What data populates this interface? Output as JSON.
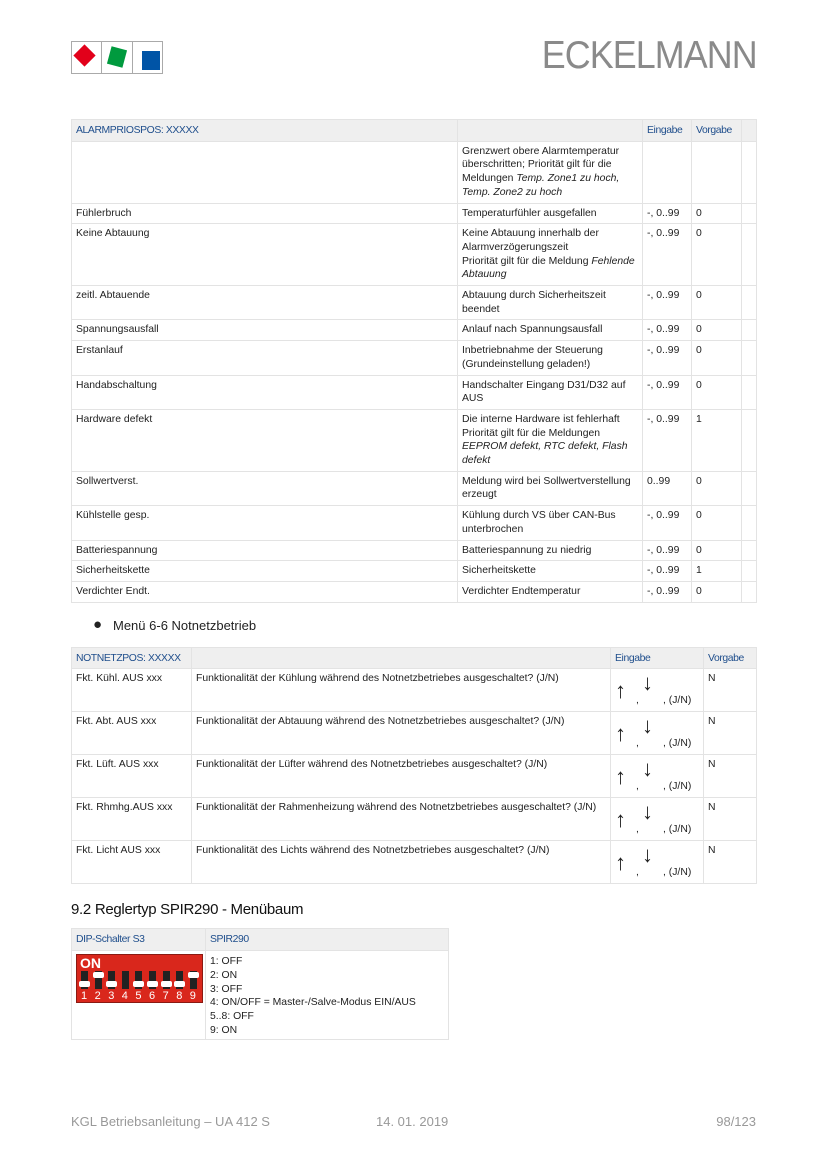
{
  "header": {
    "brand": "ECKELMANN",
    "logo_colors": [
      "#e2001a",
      "#009a3e",
      "#0054a6"
    ]
  },
  "table1": {
    "headers": [
      "ALARMPRIOSPOS: XXXXX",
      "",
      "Eingabe",
      "Vorgabe",
      ""
    ],
    "rows": [
      {
        "name": "",
        "desc": "Grenzwert obere Alarmtemperatur überschritten; Priorität gilt für die Meldungen ",
        "italic": "Temp. Zone1 zu hoch, Temp. Zone2 zu hoch",
        "input": "",
        "default": ""
      },
      {
        "name": "Fühlerbruch",
        "desc": "Temperaturfühler ausgefallen",
        "input": "-, 0..99",
        "default": "0"
      },
      {
        "name": "Keine Abtauung",
        "desc": "Keine Abtauung innerhalb der Alarmverzögerungszeit",
        "desc2": "Priorität gilt für die Meldung ",
        "italic": "Fehlende Abtauung",
        "input": "-, 0..99",
        "default": "0"
      },
      {
        "name": "zeitl. Abtauende",
        "desc": "Abtauung durch Sicherheitszeit beendet",
        "input": "-, 0..99",
        "default": "0"
      },
      {
        "name": "Spannungsausfall",
        "desc": "Anlauf nach Spannungsausfall",
        "input": "-, 0..99",
        "default": "0"
      },
      {
        "name": "Erstanlauf",
        "desc": "Inbetriebnahme der Steuerung (Grundeinstellung geladen!)",
        "input": "-, 0..99",
        "default": "0"
      },
      {
        "name": "Handabschaltung",
        "desc": "Handschalter Eingang D31/D32 auf AUS",
        "input": "-, 0..99",
        "default": "0"
      },
      {
        "name": "Hardware defekt",
        "desc": "Die interne Hardware ist fehlerhaft",
        "desc2": "Priorität gilt für die Meldungen ",
        "italic": "EEPROM defekt, RTC defekt, Flash defekt",
        "input": "-, 0..99",
        "default": "1"
      },
      {
        "name": "Sollwertverst.",
        "desc": "Meldung wird bei Sollwertverstellung erzeugt",
        "input": "0..99",
        "default": "0"
      },
      {
        "name": "Kühlstelle gesp.",
        "desc": "Kühlung durch VS über CAN-Bus unterbrochen",
        "input": "-, 0..99",
        "default": "0"
      },
      {
        "name": "Batteriespannung",
        "desc": "Batteriespannung zu niedrig",
        "input": "-, 0..99",
        "default": "0"
      },
      {
        "name": "Sicherheitskette",
        "desc": "Sicherheitskette",
        "input": "-, 0..99",
        "default": "1"
      },
      {
        "name": "Verdichter Endt.",
        "desc": "Verdichter Endtemperatur",
        "input": "-, 0..99",
        "default": "0"
      }
    ]
  },
  "bullet": "Menü 6-6 Notnetzbetrieb",
  "table2": {
    "headers": [
      "NOTNETZPOS: XXXXX",
      "",
      "Eingabe",
      "Vorgabe"
    ],
    "input_suffix": ", (J/N)",
    "input_sep": ",",
    "arrow_up": "↑",
    "arrow_down": "↓",
    "rows": [
      {
        "name": "Fkt. Kühl. AUS xxx",
        "desc": "Funktionalität der Kühlung während des Notnetzbetriebes ausgeschaltet? (J/N)",
        "default": "N"
      },
      {
        "name": "Fkt. Abt. AUS xxx",
        "desc": "Funktionalität der Abtauung während des Notnetzbetriebes ausgeschaltet? (J/N)",
        "default": "N"
      },
      {
        "name": "Fkt. Lüft. AUS xxx",
        "desc": "Funktionalität der Lüfter während des Notnetzbetriebes ausgeschaltet? (J/N)",
        "default": "N"
      },
      {
        "name": "Fkt. Rhmhg.AUS xxx",
        "desc": "Funktionalität der Rahmenheizung während des Notnetzbetriebes ausgeschaltet? (J/N)",
        "default": "N"
      },
      {
        "name": "Fkt. Licht AUS xxx",
        "desc": "Funktionalität des Lichts während des Notnetzbetriebes ausgeschaltet? (J/N)",
        "default": "N"
      }
    ]
  },
  "section_title": "9.2 Reglertyp SPIR290 - Menübaum",
  "table3": {
    "headers": [
      "DIP-Schalter S3",
      "SPIR290"
    ],
    "dip_label": "ON",
    "dip_switches": [
      {
        "n": "1",
        "on": false
      },
      {
        "n": "2",
        "on": true
      },
      {
        "n": "3",
        "on": false
      },
      {
        "n": "4",
        "on": null
      },
      {
        "n": "5",
        "on": false
      },
      {
        "n": "6",
        "on": false
      },
      {
        "n": "7",
        "on": false
      },
      {
        "n": "8",
        "on": false
      },
      {
        "n": "9",
        "on": true
      }
    ],
    "lines": [
      "1: OFF",
      "2: ON",
      "3: OFF",
      "4: ON/OFF = Master-/Salve-Modus EIN/AUS",
      "5..8: OFF",
      "9: ON"
    ]
  },
  "footer": {
    "doc": "KGL Betriebsanleitung – UA 412 S",
    "date": "14. 01. 2019",
    "page": "98/123"
  }
}
